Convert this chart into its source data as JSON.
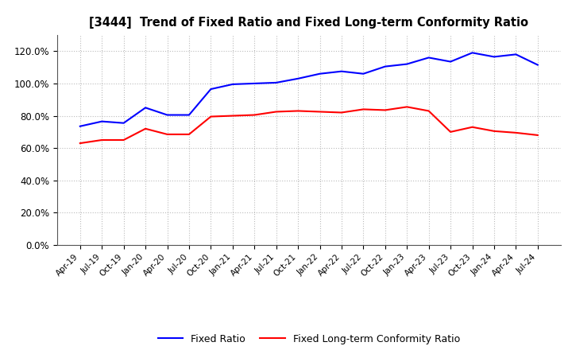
{
  "title": "[3444]  Trend of Fixed Ratio and Fixed Long-term Conformity Ratio",
  "x_labels": [
    "Apr-19",
    "Jul-19",
    "Oct-19",
    "Jan-20",
    "Apr-20",
    "Jul-20",
    "Oct-20",
    "Jan-21",
    "Apr-21",
    "Jul-21",
    "Oct-21",
    "Jan-22",
    "Apr-22",
    "Jul-22",
    "Oct-22",
    "Jan-23",
    "Apr-23",
    "Jul-23",
    "Oct-23",
    "Jan-24",
    "Apr-24",
    "Jul-24"
  ],
  "fixed_ratio": [
    73.5,
    76.5,
    75.5,
    85.0,
    80.5,
    80.5,
    96.5,
    99.5,
    100.0,
    100.5,
    103.0,
    106.0,
    107.5,
    106.0,
    110.5,
    112.0,
    116.0,
    113.5,
    119.0,
    116.5,
    118.0,
    111.5
  ],
  "fixed_lt_ratio": [
    63.0,
    65.0,
    65.0,
    72.0,
    68.5,
    68.5,
    79.5,
    80.0,
    80.5,
    82.5,
    83.0,
    82.5,
    82.0,
    84.0,
    83.5,
    85.5,
    83.0,
    70.0,
    73.0,
    70.5,
    69.5,
    68.0
  ],
  "fixed_ratio_color": "#0000FF",
  "fixed_lt_ratio_color": "#FF0000",
  "ylim": [
    0,
    130
  ],
  "yticks": [
    0,
    20,
    40,
    60,
    80,
    100,
    120
  ],
  "background_color": "#FFFFFF",
  "grid_color": "#BBBBBB",
  "legend_fixed": "Fixed Ratio",
  "legend_fixed_lt": "Fixed Long-term Conformity Ratio"
}
